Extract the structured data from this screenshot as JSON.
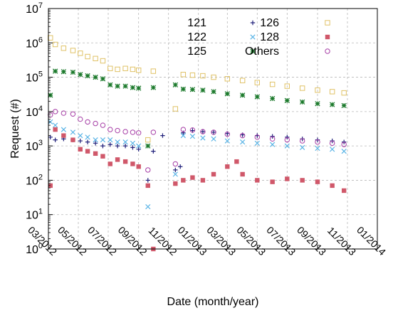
{
  "chart_data": {
    "type": "scatter",
    "xlabel": "Date (month/year)",
    "ylabel": "Request (#)",
    "x_scale": "date",
    "y_scale": "log",
    "xlim": [
      "2012-03-01",
      "2014-01-01"
    ],
    "ylim": [
      1,
      10000000
    ],
    "x_ticks": [
      {
        "date": "2012-03-01",
        "label": "03/2012"
      },
      {
        "date": "2012-05-01",
        "label": "05/2012"
      },
      {
        "date": "2012-07-01",
        "label": "07/2012"
      },
      {
        "date": "2012-09-01",
        "label": "09/2012"
      },
      {
        "date": "2012-11-01",
        "label": "11/2012"
      },
      {
        "date": "2013-01-01",
        "label": "01/2013"
      },
      {
        "date": "2013-03-01",
        "label": "03/2013"
      },
      {
        "date": "2013-05-01",
        "label": "05/2013"
      },
      {
        "date": "2013-07-01",
        "label": "07/2013"
      },
      {
        "date": "2013-09-01",
        "label": "09/2013"
      },
      {
        "date": "2013-11-01",
        "label": "11/2013"
      },
      {
        "date": "2014-01-01",
        "label": "01/2014"
      }
    ],
    "y_ticks": [
      {
        "value": 1,
        "base": "10",
        "exp": "0"
      },
      {
        "value": 10,
        "base": "10",
        "exp": "1"
      },
      {
        "value": 100,
        "base": "10",
        "exp": "2"
      },
      {
        "value": 1000,
        "base": "10",
        "exp": "3"
      },
      {
        "value": 10000,
        "base": "10",
        "exp": "4"
      },
      {
        "value": 100000,
        "base": "10",
        "exp": "5"
      },
      {
        "value": 1000000,
        "base": "10",
        "exp": "6"
      },
      {
        "value": 10000000,
        "base": "10",
        "exp": "7"
      }
    ],
    "grid": true,
    "legend_position": "top-right",
    "series": [
      {
        "name": "121",
        "marker": "plus",
        "color": "#1f1f7a",
        "points": [
          [
            "2012-03-05",
            1800
          ],
          [
            "2012-03-15",
            1500
          ],
          [
            "2012-04-01",
            1600
          ],
          [
            "2012-04-20",
            1500
          ],
          [
            "2012-05-05",
            1400
          ],
          [
            "2012-05-20",
            1300
          ],
          [
            "2012-06-05",
            1200
          ],
          [
            "2012-06-20",
            1000
          ],
          [
            "2012-07-05",
            1100
          ],
          [
            "2012-07-20",
            1000
          ],
          [
            "2012-08-05",
            1000
          ],
          [
            "2012-08-20",
            900
          ],
          [
            "2012-09-01",
            800
          ],
          [
            "2012-09-20",
            100
          ],
          [
            "2012-10-01",
            700
          ],
          [
            "2012-10-20",
            2000
          ],
          [
            "2012-11-15",
            200
          ],
          [
            "2012-11-25",
            250
          ],
          [
            "2012-12-01",
            2400
          ],
          [
            "2012-12-20",
            2800
          ],
          [
            "2013-01-10",
            2600
          ],
          [
            "2013-02-01",
            2500
          ],
          [
            "2013-03-01",
            2300
          ],
          [
            "2013-04-01",
            2100
          ],
          [
            "2013-05-01",
            2000
          ],
          [
            "2013-06-01",
            1900
          ],
          [
            "2013-07-01",
            1800
          ],
          [
            "2013-08-01",
            1600
          ],
          [
            "2013-09-01",
            1500
          ],
          [
            "2013-10-01",
            1400
          ],
          [
            "2013-10-25",
            1300
          ]
        ]
      },
      {
        "name": "122",
        "marker": "cross",
        "color": "#5ab4e6",
        "points": [
          [
            "2012-03-05",
            5000
          ],
          [
            "2012-03-15",
            4000
          ],
          [
            "2012-04-01",
            3000
          ],
          [
            "2012-04-20",
            2500
          ],
          [
            "2012-05-05",
            2000
          ],
          [
            "2012-05-20",
            1800
          ],
          [
            "2012-06-05",
            1500
          ],
          [
            "2012-06-20",
            1500
          ],
          [
            "2012-07-05",
            1500
          ],
          [
            "2012-07-20",
            1300
          ],
          [
            "2012-08-05",
            1300
          ],
          [
            "2012-08-20",
            1200
          ],
          [
            "2012-09-01",
            1000
          ],
          [
            "2012-09-20",
            17
          ],
          [
            "2012-11-15",
            150
          ],
          [
            "2012-12-01",
            2000
          ],
          [
            "2012-12-20",
            1900
          ],
          [
            "2013-01-10",
            1700
          ],
          [
            "2013-02-01",
            1600
          ],
          [
            "2013-03-01",
            1400
          ],
          [
            "2013-04-01",
            1300
          ],
          [
            "2013-05-01",
            1200
          ],
          [
            "2013-06-01",
            1100
          ],
          [
            "2013-07-01",
            1000
          ],
          [
            "2013-08-01",
            900
          ],
          [
            "2013-09-01",
            850
          ],
          [
            "2013-10-01",
            800
          ],
          [
            "2013-10-25",
            700
          ]
        ]
      },
      {
        "name": "125",
        "marker": "star",
        "color": "#1c7a2c",
        "points": [
          [
            "2012-03-05",
            30000
          ],
          [
            "2012-03-15",
            150000
          ],
          [
            "2012-04-01",
            145000
          ],
          [
            "2012-04-20",
            140000
          ],
          [
            "2012-05-05",
            120000
          ],
          [
            "2012-05-20",
            110000
          ],
          [
            "2012-06-05",
            100000
          ],
          [
            "2012-06-20",
            90000
          ],
          [
            "2012-07-05",
            60000
          ],
          [
            "2012-07-20",
            55000
          ],
          [
            "2012-08-05",
            55000
          ],
          [
            "2012-08-20",
            50000
          ],
          [
            "2012-09-01",
            48000
          ],
          [
            "2012-09-20",
            1000
          ],
          [
            "2012-10-01",
            50000
          ],
          [
            "2012-11-15",
            60000
          ],
          [
            "2012-12-01",
            45000
          ],
          [
            "2012-12-20",
            44000
          ],
          [
            "2013-01-10",
            42000
          ],
          [
            "2013-02-01",
            38000
          ],
          [
            "2013-03-01",
            33000
          ],
          [
            "2013-04-01",
            30000
          ],
          [
            "2013-05-01",
            27000
          ],
          [
            "2013-06-01",
            24000
          ],
          [
            "2013-07-01",
            21000
          ],
          [
            "2013-08-01",
            19000
          ],
          [
            "2013-09-01",
            17000
          ],
          [
            "2013-10-01",
            16000
          ],
          [
            "2013-10-25",
            15000
          ]
        ]
      },
      {
        "name": "126",
        "marker": "square-open",
        "color": "#e0c266",
        "points": [
          [
            "2012-03-05",
            1400000
          ],
          [
            "2012-03-15",
            900000
          ],
          [
            "2012-04-01",
            700000
          ],
          [
            "2012-04-20",
            600000
          ],
          [
            "2012-05-05",
            500000
          ],
          [
            "2012-05-20",
            400000
          ],
          [
            "2012-06-05",
            350000
          ],
          [
            "2012-06-20",
            300000
          ],
          [
            "2012-07-05",
            180000
          ],
          [
            "2012-07-20",
            170000
          ],
          [
            "2012-08-05",
            180000
          ],
          [
            "2012-08-20",
            170000
          ],
          [
            "2012-09-01",
            160000
          ],
          [
            "2012-09-20",
            1500
          ],
          [
            "2012-10-01",
            150000
          ],
          [
            "2012-11-15",
            12000
          ],
          [
            "2012-12-01",
            120000
          ],
          [
            "2012-12-20",
            115000
          ],
          [
            "2013-01-10",
            110000
          ],
          [
            "2013-02-01",
            100000
          ],
          [
            "2013-03-01",
            90000
          ],
          [
            "2013-04-01",
            80000
          ],
          [
            "2013-05-01",
            70000
          ],
          [
            "2013-06-01",
            62000
          ],
          [
            "2013-07-01",
            55000
          ],
          [
            "2013-08-01",
            48000
          ],
          [
            "2013-09-01",
            42000
          ],
          [
            "2013-10-01",
            38000
          ],
          [
            "2013-10-25",
            35000
          ]
        ]
      },
      {
        "name": "128",
        "marker": "square-filled",
        "color": "#d0586a",
        "points": [
          [
            "2012-03-05",
            70
          ],
          [
            "2012-03-15",
            3000
          ],
          [
            "2012-04-01",
            2000
          ],
          [
            "2012-04-20",
            1500
          ],
          [
            "2012-05-05",
            800
          ],
          [
            "2012-05-20",
            700
          ],
          [
            "2012-06-05",
            600
          ],
          [
            "2012-06-20",
            500
          ],
          [
            "2012-07-05",
            300
          ],
          [
            "2012-07-20",
            400
          ],
          [
            "2012-08-05",
            350
          ],
          [
            "2012-08-20",
            300
          ],
          [
            "2012-09-01",
            250
          ],
          [
            "2012-09-20",
            70
          ],
          [
            "2012-10-01",
            1
          ],
          [
            "2012-11-15",
            80
          ],
          [
            "2012-12-01",
            100
          ],
          [
            "2012-12-20",
            120
          ],
          [
            "2013-01-10",
            100
          ],
          [
            "2013-02-01",
            150
          ],
          [
            "2013-03-01",
            250
          ],
          [
            "2013-03-20",
            350
          ],
          [
            "2013-04-01",
            150
          ],
          [
            "2013-05-01",
            100
          ],
          [
            "2013-06-01",
            90
          ],
          [
            "2013-07-01",
            110
          ],
          [
            "2013-08-01",
            100
          ],
          [
            "2013-09-01",
            90
          ],
          [
            "2013-10-01",
            70
          ],
          [
            "2013-10-25",
            50
          ]
        ]
      },
      {
        "name": "Others",
        "marker": "circle-open",
        "color": "#a63ea6",
        "points": [
          [
            "2012-03-05",
            8000
          ],
          [
            "2012-03-15",
            10000
          ],
          [
            "2012-04-01",
            9000
          ],
          [
            "2012-04-20",
            8500
          ],
          [
            "2012-05-05",
            6000
          ],
          [
            "2012-05-20",
            5000
          ],
          [
            "2012-06-05",
            4500
          ],
          [
            "2012-06-20",
            4000
          ],
          [
            "2012-07-05",
            3000
          ],
          [
            "2012-07-20",
            2800
          ],
          [
            "2012-08-05",
            2600
          ],
          [
            "2012-08-20",
            2500
          ],
          [
            "2012-09-01",
            2400
          ],
          [
            "2012-09-20",
            200
          ],
          [
            "2012-10-01",
            2500
          ],
          [
            "2012-11-15",
            300
          ],
          [
            "2012-12-01",
            3000
          ],
          [
            "2012-12-20",
            2900
          ],
          [
            "2013-01-10",
            2600
          ],
          [
            "2013-02-01",
            2500
          ],
          [
            "2013-03-01",
            2200
          ],
          [
            "2013-04-01",
            2000
          ],
          [
            "2013-05-01",
            1800
          ],
          [
            "2013-06-01",
            1600
          ],
          [
            "2013-07-01",
            1500
          ],
          [
            "2013-08-01",
            1400
          ],
          [
            "2013-09-01",
            1300
          ],
          [
            "2013-10-01",
            1200
          ],
          [
            "2013-10-25",
            1100
          ]
        ]
      }
    ]
  }
}
